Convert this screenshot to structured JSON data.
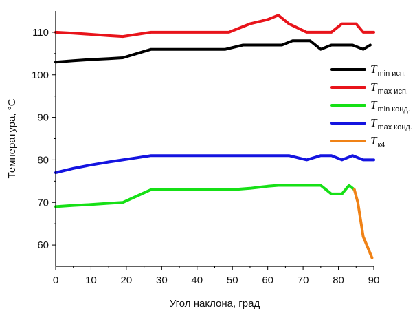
{
  "chart_data": {
    "type": "line",
    "xlabel": "Угол наклона, град",
    "ylabel": "Температура, °C",
    "xlim": [
      0,
      90
    ],
    "ylim": [
      55,
      115
    ],
    "x_ticks": [
      "0",
      "10",
      "20",
      "30",
      "40",
      "50",
      "60",
      "70",
      "80",
      "90"
    ],
    "y_ticks": [
      "60",
      "70",
      "80",
      "90",
      "100",
      "110"
    ],
    "grid": false,
    "legend_position": "right",
    "series": [
      {
        "name": "T min исп.",
        "symbol": "T",
        "subscript": "min исп.",
        "color": "#000000",
        "points": [
          [
            0,
            103
          ],
          [
            5,
            103.3
          ],
          [
            10,
            103.6
          ],
          [
            15,
            103.8
          ],
          [
            19,
            104
          ],
          [
            23,
            105
          ],
          [
            27,
            106
          ],
          [
            35,
            106
          ],
          [
            40,
            106
          ],
          [
            48,
            106
          ],
          [
            53,
            107
          ],
          [
            58,
            107
          ],
          [
            64,
            107
          ],
          [
            67,
            108
          ],
          [
            72,
            108
          ],
          [
            75,
            106
          ],
          [
            78,
            107
          ],
          [
            84,
            107
          ],
          [
            87,
            106
          ],
          [
            89,
            107
          ]
        ]
      },
      {
        "name": "T max исп.",
        "symbol": "T",
        "subscript": "max исп.",
        "color": "#e8141b",
        "points": [
          [
            0,
            110
          ],
          [
            5,
            109.8
          ],
          [
            10,
            109.5
          ],
          [
            15,
            109.2
          ],
          [
            19,
            109
          ],
          [
            23,
            109.5
          ],
          [
            27,
            110
          ],
          [
            35,
            110
          ],
          [
            40,
            110
          ],
          [
            49,
            110
          ],
          [
            55,
            112
          ],
          [
            60,
            113
          ],
          [
            63,
            114
          ],
          [
            66,
            112
          ],
          [
            71,
            110
          ],
          [
            78,
            110
          ],
          [
            81,
            112
          ],
          [
            85,
            112
          ],
          [
            87,
            110
          ],
          [
            90,
            110
          ]
        ]
      },
      {
        "name": "T min конд.",
        "symbol": "T",
        "subscript": "min конд.",
        "color": "#16e016",
        "points": [
          [
            0,
            69
          ],
          [
            5,
            69.3
          ],
          [
            10,
            69.5
          ],
          [
            15,
            69.8
          ],
          [
            19,
            70
          ],
          [
            23,
            71.5
          ],
          [
            27,
            73
          ],
          [
            35,
            73
          ],
          [
            40,
            73
          ],
          [
            50,
            73
          ],
          [
            55,
            73.3
          ],
          [
            60,
            73.8
          ],
          [
            63,
            74
          ],
          [
            70,
            74
          ],
          [
            75,
            74
          ],
          [
            78,
            72
          ],
          [
            81,
            72
          ],
          [
            83,
            74
          ],
          [
            84.5,
            73
          ]
        ]
      },
      {
        "name": "T max конд.",
        "symbol": "T",
        "subscript": "max конд.",
        "color": "#1414e0",
        "points": [
          [
            0,
            77
          ],
          [
            5,
            78
          ],
          [
            10,
            78.8
          ],
          [
            15,
            79.5
          ],
          [
            19,
            80
          ],
          [
            23,
            80.5
          ],
          [
            27,
            81
          ],
          [
            35,
            81
          ],
          [
            40,
            81
          ],
          [
            50,
            81
          ],
          [
            60,
            81
          ],
          [
            66,
            81
          ],
          [
            71,
            80
          ],
          [
            75,
            81
          ],
          [
            78,
            81
          ],
          [
            81,
            80
          ],
          [
            84,
            81
          ],
          [
            87,
            80
          ],
          [
            90,
            80
          ]
        ]
      },
      {
        "name": "T к4",
        "symbol": "T",
        "subscript": "к4",
        "color": "#f08216",
        "points": [
          [
            84.5,
            73
          ],
          [
            85.5,
            70
          ],
          [
            87,
            62
          ],
          [
            89.5,
            57
          ]
        ]
      }
    ]
  }
}
